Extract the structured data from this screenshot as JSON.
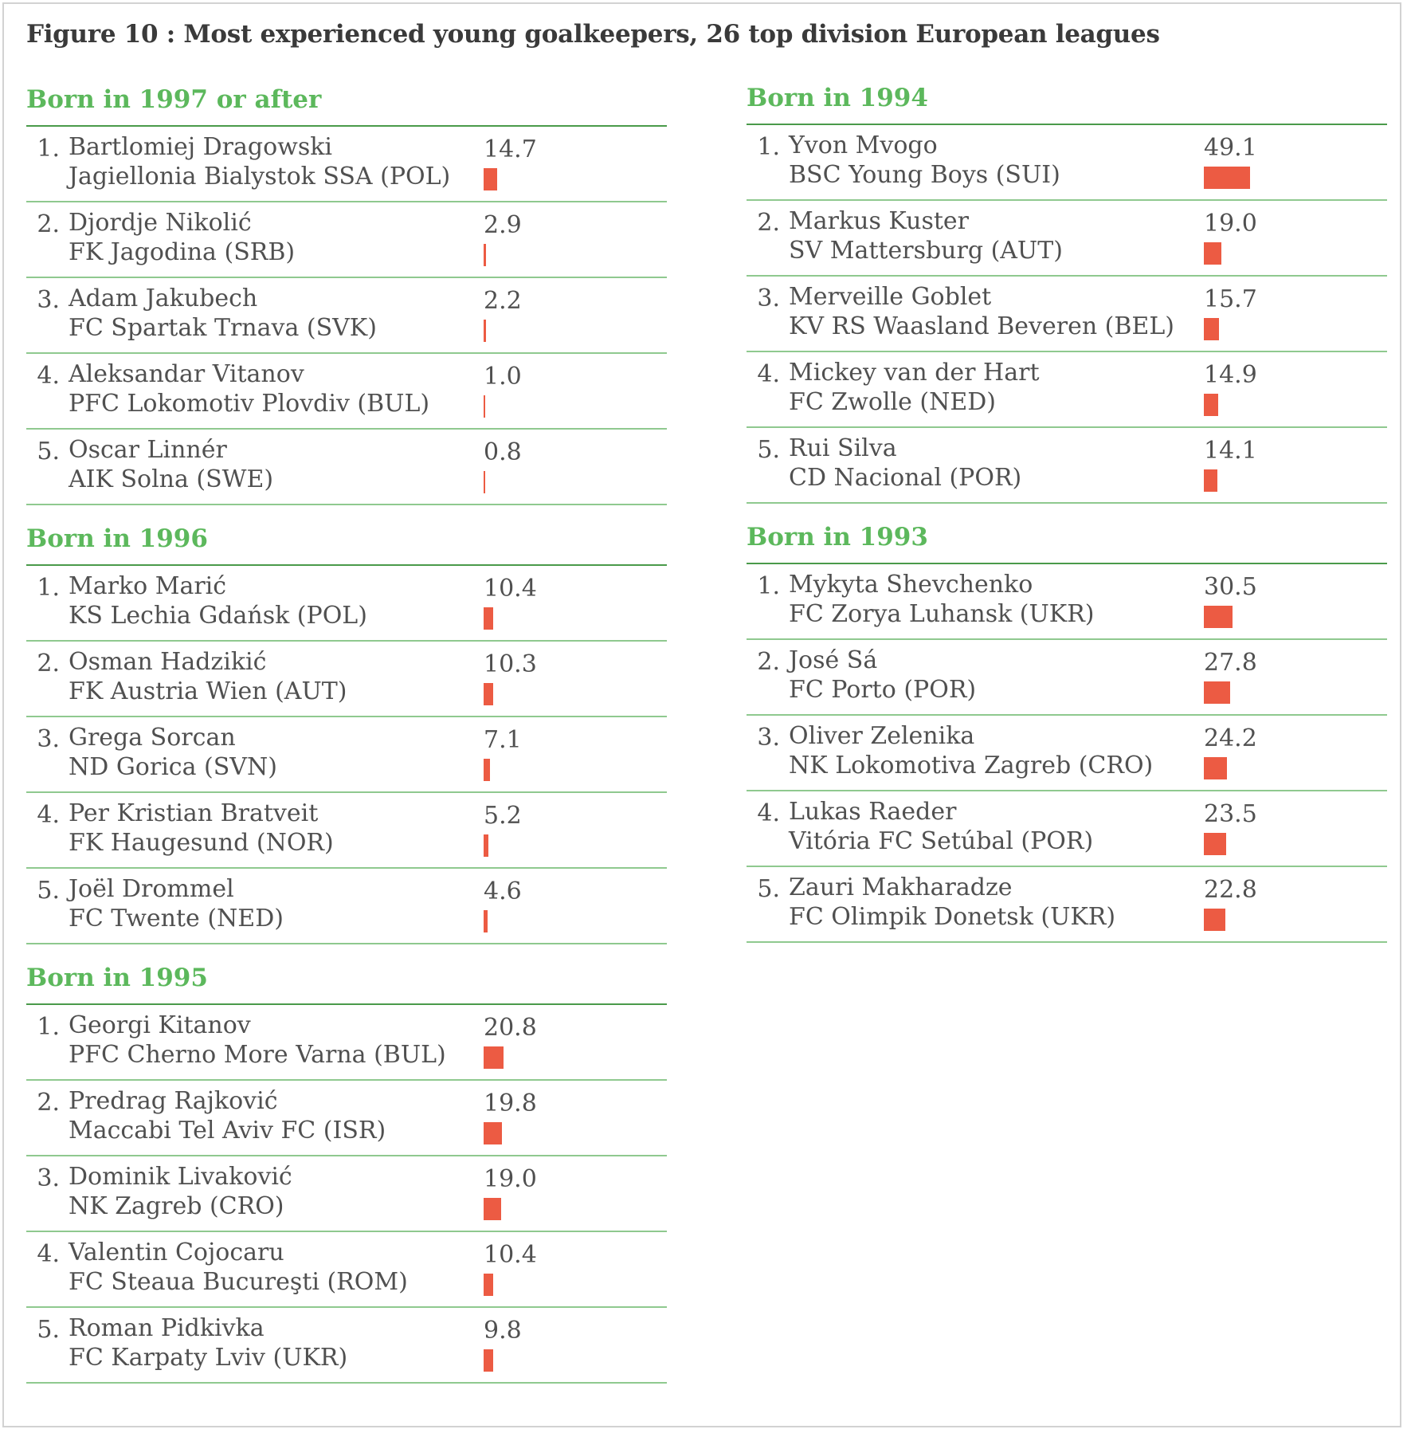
{
  "title": "Figure 10  : Most experienced young goalkeepers, 26 top division European leagues",
  "colors": {
    "accent": "#5cb85c",
    "bar": "#ec5b43",
    "text": "#505050"
  },
  "chart_data": {
    "type": "bar",
    "max_value": 49.1,
    "groups": [
      {
        "title": "Born in 1997 or after",
        "column": "left",
        "entries": [
          {
            "rank": "1.",
            "name": "Bartlomiej Dragowski",
            "club": "Jagiellonia Bialystok SSA (POL)",
            "value": 14.7,
            "label": "14.7"
          },
          {
            "rank": "2.",
            "name": "Djordje Nikolić",
            "club": "FK Jagodina (SRB)",
            "value": 2.9,
            "label": "2.9"
          },
          {
            "rank": "3.",
            "name": "Adam Jakubech",
            "club": "FC Spartak Trnava (SVK)",
            "value": 2.2,
            "label": "2.2"
          },
          {
            "rank": "4.",
            "name": "Aleksandar Vitanov",
            "club": "PFC Lokomotiv Plovdiv (BUL)",
            "value": 1.0,
            "label": "1.0"
          },
          {
            "rank": "5.",
            "name": "Oscar Linnér",
            "club": "AIK Solna (SWE)",
            "value": 0.8,
            "label": "0.8"
          }
        ]
      },
      {
        "title": "Born in 1996",
        "column": "left",
        "entries": [
          {
            "rank": "1.",
            "name": "Marko Marić",
            "club": "KS Lechia Gdańsk (POL)",
            "value": 10.4,
            "label": "10.4"
          },
          {
            "rank": "2.",
            "name": "Osman Hadzikić",
            "club": "FK Austria Wien (AUT)",
            "value": 10.3,
            "label": "10.3"
          },
          {
            "rank": "3.",
            "name": "Grega Sorcan",
            "club": "ND Gorica (SVN)",
            "value": 7.1,
            "label": "7.1"
          },
          {
            "rank": "4.",
            "name": "Per Kristian Bratveit",
            "club": "FK Haugesund (NOR)",
            "value": 5.2,
            "label": "5.2"
          },
          {
            "rank": "5.",
            "name": "Joël Drommel",
            "club": "FC Twente (NED)",
            "value": 4.6,
            "label": "4.6"
          }
        ]
      },
      {
        "title": "Born in 1995",
        "column": "left",
        "entries": [
          {
            "rank": "1.",
            "name": "Georgi Kitanov",
            "club": "PFC Cherno More Varna (BUL)",
            "value": 20.8,
            "label": "20.8"
          },
          {
            "rank": "2.",
            "name": "Predrag Rajković",
            "club": "Maccabi Tel Aviv FC (ISR)",
            "value": 19.8,
            "label": "19.8"
          },
          {
            "rank": "3.",
            "name": "Dominik Livaković",
            "club": "NK Zagreb (CRO)",
            "value": 19.0,
            "label": "19.0"
          },
          {
            "rank": "4.",
            "name": "Valentin Cojocaru",
            "club": "FC Steaua Bucureşti (ROM)",
            "value": 10.4,
            "label": "10.4"
          },
          {
            "rank": "5.",
            "name": "Roman Pidkivka",
            "club": "FC Karpaty Lviv (UKR)",
            "value": 9.8,
            "label": "9.8"
          }
        ]
      },
      {
        "title": "Born in 1994",
        "column": "right",
        "entries": [
          {
            "rank": "1.",
            "name": "Yvon Mvogo",
            "club": "BSC Young Boys (SUI)",
            "value": 49.1,
            "label": "49.1"
          },
          {
            "rank": "2.",
            "name": "Markus Kuster",
            "club": "SV Mattersburg (AUT)",
            "value": 19.0,
            "label": "19.0"
          },
          {
            "rank": "3.",
            "name": "Merveille Goblet",
            "club": "KV RS Waasland Beveren (BEL)",
            "value": 15.7,
            "label": "15.7"
          },
          {
            "rank": "4.",
            "name": "Mickey van der Hart",
            "club": "FC Zwolle (NED)",
            "value": 14.9,
            "label": "14.9"
          },
          {
            "rank": "5.",
            "name": "Rui Silva",
            "club": "CD Nacional (POR)",
            "value": 14.1,
            "label": "14.1"
          }
        ]
      },
      {
        "title": "Born in 1993",
        "column": "right",
        "entries": [
          {
            "rank": "1.",
            "name": "Mykyta Shevchenko",
            "club": "FC Zorya Luhansk (UKR)",
            "value": 30.5,
            "label": "30.5"
          },
          {
            "rank": "2.",
            "name": "José Sá",
            "club": "FC Porto (POR)",
            "value": 27.8,
            "label": "27.8"
          },
          {
            "rank": "3.",
            "name": "Oliver Zelenika",
            "club": "NK Lokomotiva Zagreb (CRO)",
            "value": 24.2,
            "label": "24.2"
          },
          {
            "rank": "4.",
            "name": "Lukas Raeder",
            "club": "Vitória FC Setúbal (POR)",
            "value": 23.5,
            "label": "23.5"
          },
          {
            "rank": "5.",
            "name": "Zauri Makharadze",
            "club": "FC Olimpik Donetsk (UKR)",
            "value": 22.8,
            "label": "22.8"
          }
        ]
      }
    ]
  }
}
